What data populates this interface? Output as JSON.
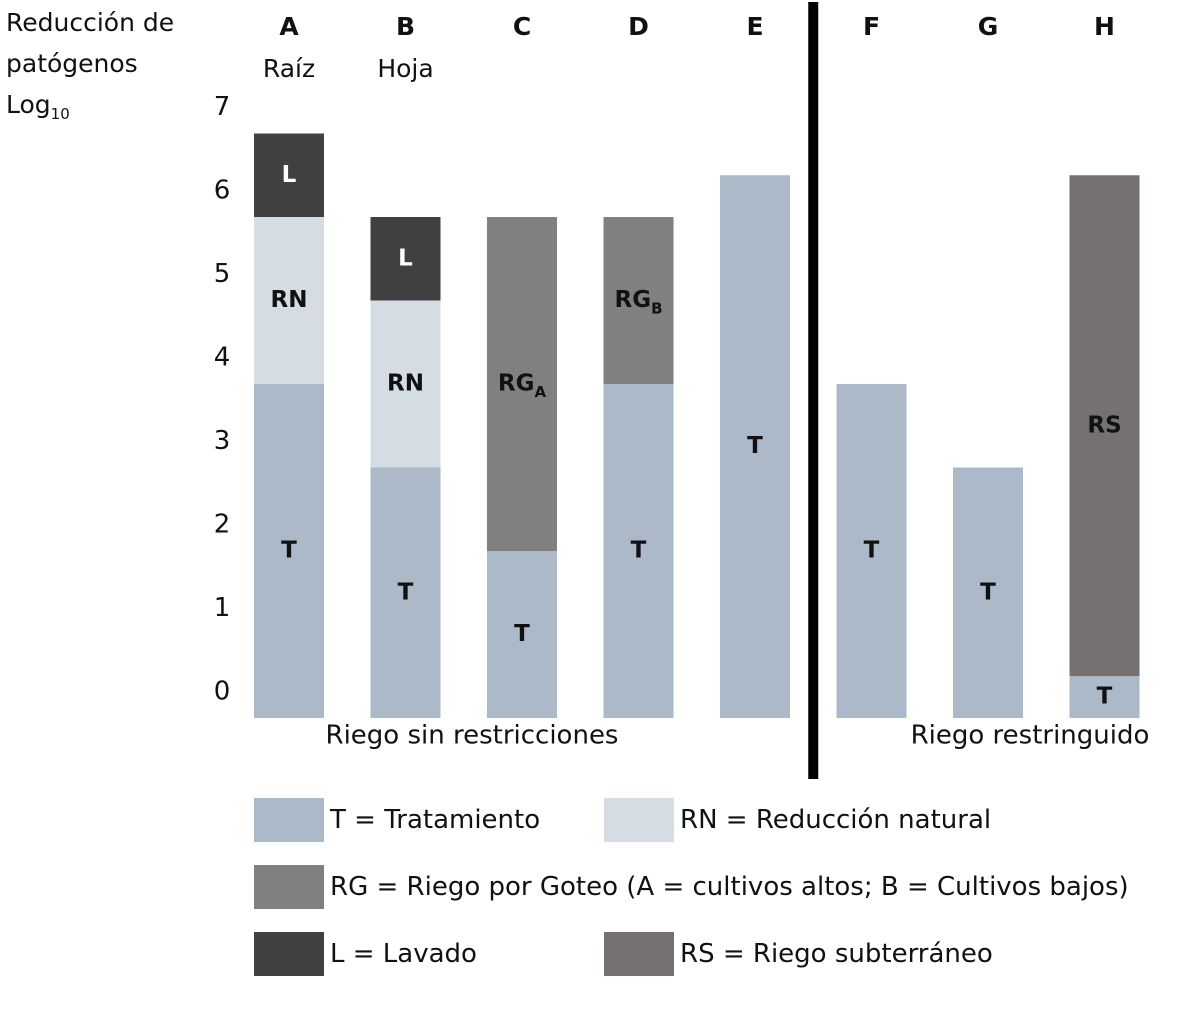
{
  "chart_data": {
    "type": "bar",
    "stacked": true,
    "ylabel": [
      "Reducción de",
      "patógenos",
      "Log",
      "10"
    ],
    "ylim": [
      0,
      7
    ],
    "yticks": [
      0,
      1,
      2,
      3,
      4,
      5,
      6,
      7
    ],
    "categories": [
      "A",
      "B",
      "C",
      "D",
      "E",
      "F",
      "G",
      "H"
    ],
    "sublabels": [
      "Raíz",
      "Hoja",
      "",
      "",
      "",
      "",
      "",
      ""
    ],
    "bars": [
      {
        "category": "A",
        "segments": [
          {
            "key": "T",
            "label": "T",
            "sub": "",
            "value": 4
          },
          {
            "key": "RN",
            "label": "RN",
            "sub": "",
            "value": 2
          },
          {
            "key": "L",
            "label": "L",
            "sub": "",
            "value": 1
          }
        ]
      },
      {
        "category": "B",
        "segments": [
          {
            "key": "T",
            "label": "T",
            "sub": "",
            "value": 3
          },
          {
            "key": "RN",
            "label": "RN",
            "sub": "",
            "value": 2
          },
          {
            "key": "L",
            "label": "L",
            "sub": "",
            "value": 1
          }
        ]
      },
      {
        "category": "C",
        "segments": [
          {
            "key": "T",
            "label": "T",
            "sub": "",
            "value": 2
          },
          {
            "key": "RG",
            "label": "RG",
            "sub": "A",
            "value": 4
          }
        ]
      },
      {
        "category": "D",
        "segments": [
          {
            "key": "T",
            "label": "T",
            "sub": "",
            "value": 4
          },
          {
            "key": "RG",
            "label": "RG",
            "sub": "B",
            "value": 2
          }
        ]
      },
      {
        "category": "E",
        "segments": [
          {
            "key": "T",
            "label": "T",
            "sub": "",
            "value": 6.5
          }
        ]
      },
      {
        "category": "F",
        "segments": [
          {
            "key": "T",
            "label": "T",
            "sub": "",
            "value": 4
          }
        ]
      },
      {
        "category": "G",
        "segments": [
          {
            "key": "T",
            "label": "T",
            "sub": "",
            "value": 3
          }
        ]
      },
      {
        "category": "H",
        "segments": [
          {
            "key": "T",
            "label": "T",
            "sub": "",
            "value": 0.5
          },
          {
            "key": "RS",
            "label": "RS",
            "sub": "",
            "value": 6
          }
        ]
      }
    ],
    "groups": [
      {
        "label": "Riego sin restricciones",
        "categories": [
          "A",
          "B",
          "C",
          "D",
          "E"
        ]
      },
      {
        "label": "Riego restringuido",
        "categories": [
          "F",
          "G",
          "H"
        ]
      }
    ],
    "divider_between": [
      "E",
      "F"
    ],
    "colors": {
      "T": "#abb9c9",
      "RN": "#d5dce4",
      "RG": "#808080",
      "L": "#404040",
      "RS": "#767171"
    },
    "legend": [
      {
        "key": "T",
        "text": "T = Tratamiento"
      },
      {
        "key": "RN",
        "text": "RN = Reducción natural"
      },
      {
        "key": "RG",
        "text": "RG = Riego por Goteo (A = cultivos altos; B = Cultivos bajos)"
      },
      {
        "key": "L",
        "text": "L = Lavado"
      },
      {
        "key": "RS",
        "text": "RS = Riego subterráneo"
      }
    ]
  }
}
